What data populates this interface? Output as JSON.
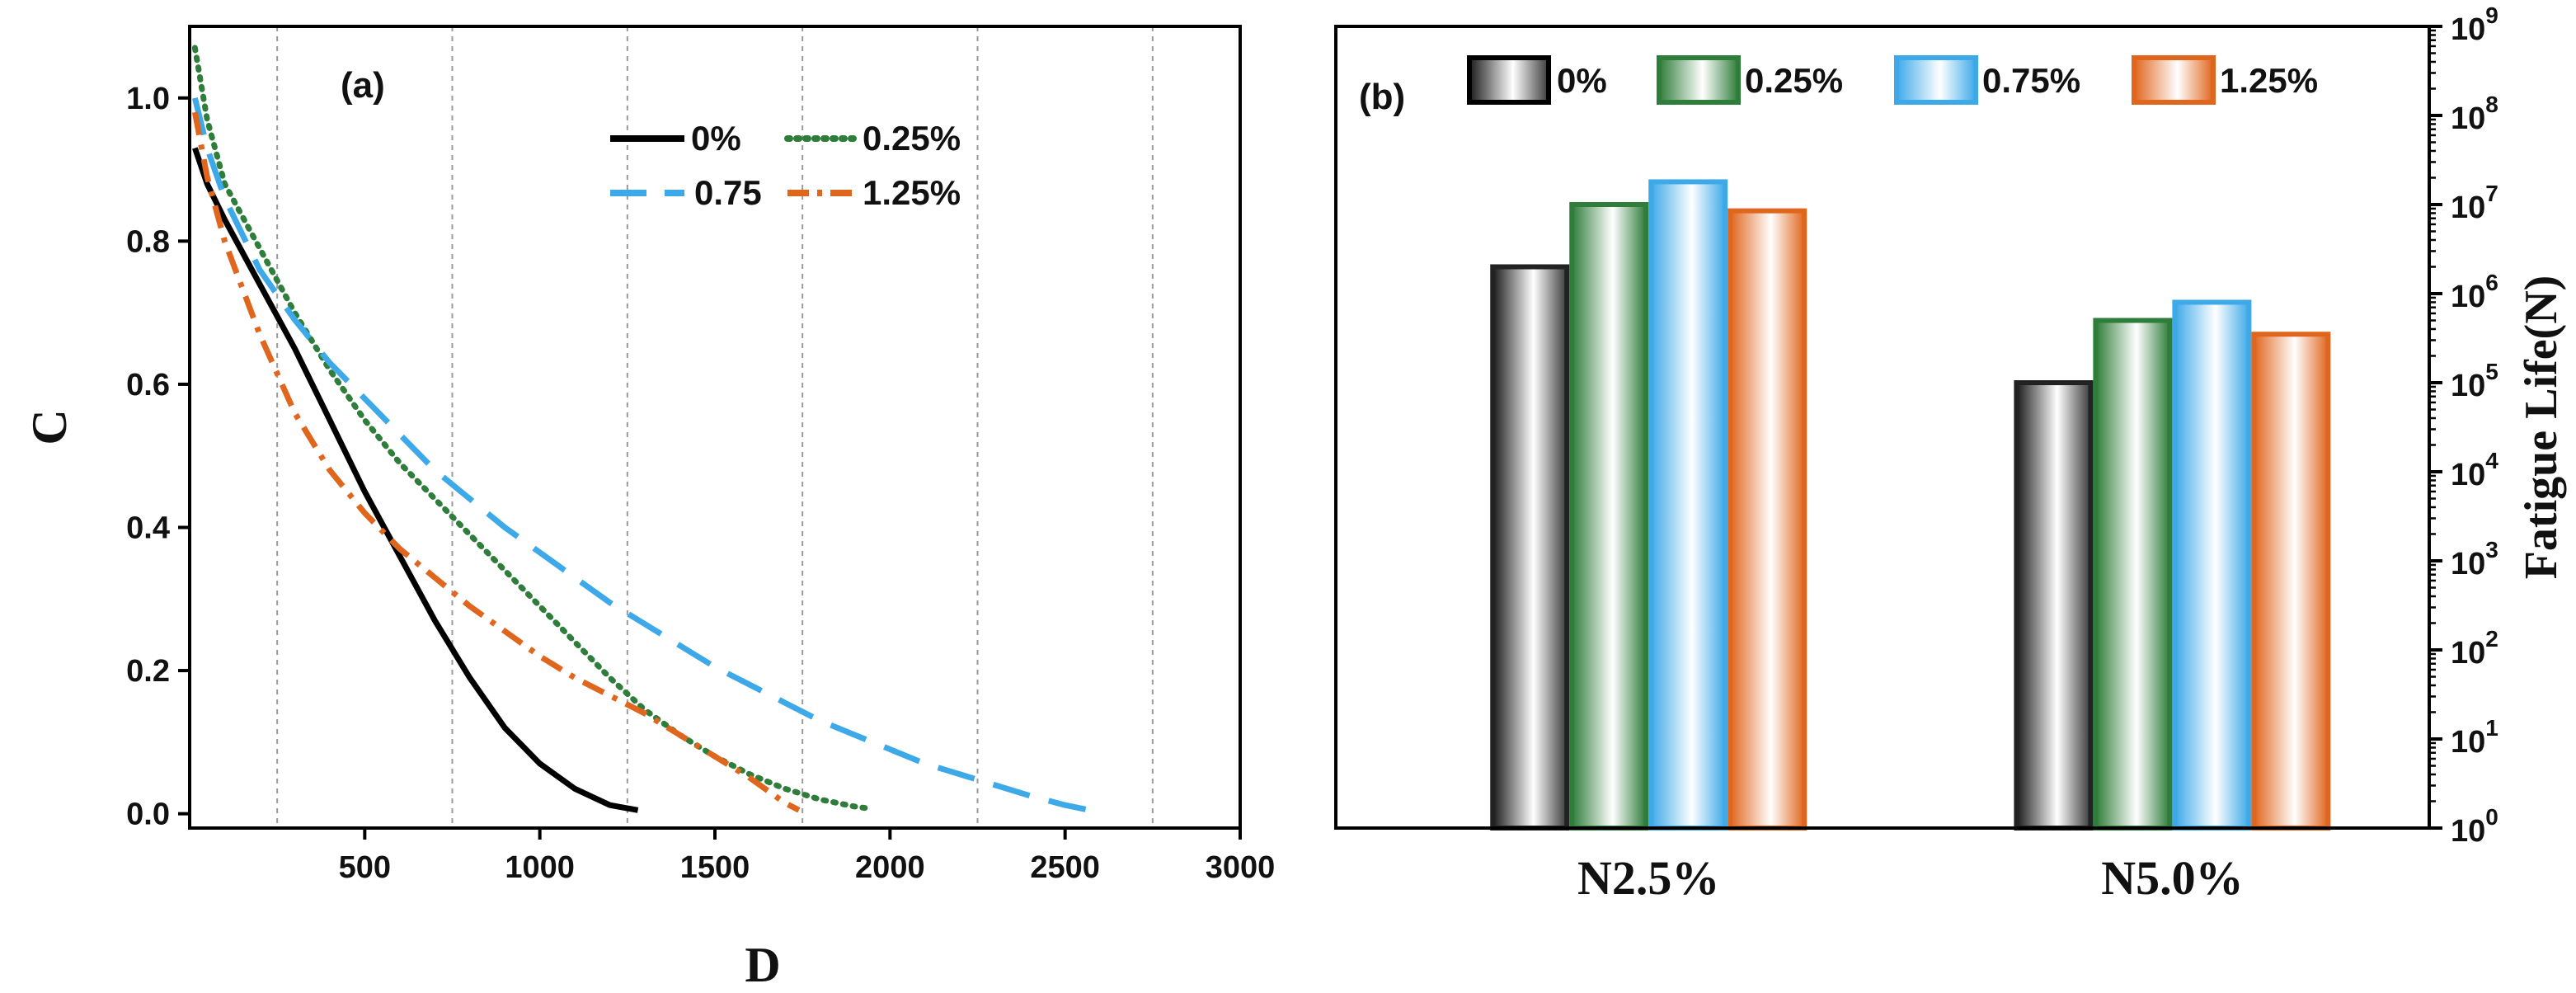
{
  "chart_data": [
    {
      "panel": "(a)",
      "type": "line",
      "xlabel": "D",
      "ylabel": "C",
      "xlim": [
        0,
        3000
      ],
      "ylim": [
        -0.02,
        1.1
      ],
      "x_ticks": [
        500,
        1000,
        1500,
        2000,
        2500,
        3000
      ],
      "x_tick_labels": [
        "500",
        "1000",
        "1500",
        "2000",
        "2500",
        "3000"
      ],
      "y_ticks": [
        0.0,
        0.2,
        0.4,
        0.6,
        0.8,
        1.0
      ],
      "y_tick_labels": [
        "0.0",
        "0.2",
        "0.4",
        "0.6",
        "0.8",
        "1.0"
      ],
      "vertical_gridlines": [
        250,
        750,
        1250,
        1750,
        2250,
        2750
      ],
      "legend_position": "top-right",
      "series": [
        {
          "name": "0%",
          "color": "#000000",
          "style": "solid",
          "points": [
            [
              15,
              0.93
            ],
            [
              50,
              0.88
            ],
            [
              100,
              0.83
            ],
            [
              200,
              0.74
            ],
            [
              300,
              0.65
            ],
            [
              400,
              0.55
            ],
            [
              500,
              0.45
            ],
            [
              600,
              0.36
            ],
            [
              700,
              0.27
            ],
            [
              800,
              0.19
            ],
            [
              900,
              0.12
            ],
            [
              1000,
              0.07
            ],
            [
              1100,
              0.035
            ],
            [
              1200,
              0.012
            ],
            [
              1280,
              0.005
            ]
          ]
        },
        {
          "name": "0.25%",
          "color": "#2E7D3A",
          "style": "dotted",
          "points": [
            [
              15,
              1.07
            ],
            [
              50,
              0.97
            ],
            [
              100,
              0.88
            ],
            [
              200,
              0.79
            ],
            [
              300,
              0.7
            ],
            [
              400,
              0.62
            ],
            [
              500,
              0.55
            ],
            [
              600,
              0.49
            ],
            [
              700,
              0.44
            ],
            [
              800,
              0.39
            ],
            [
              900,
              0.34
            ],
            [
              1000,
              0.29
            ],
            [
              1100,
              0.24
            ],
            [
              1200,
              0.19
            ],
            [
              1300,
              0.145
            ],
            [
              1400,
              0.11
            ],
            [
              1500,
              0.08
            ],
            [
              1600,
              0.055
            ],
            [
              1700,
              0.035
            ],
            [
              1800,
              0.02
            ],
            [
              1900,
              0.01
            ],
            [
              1930,
              0.008
            ]
          ]
        },
        {
          "name": "0.75",
          "color": "#3DA9E8",
          "style": "dashed",
          "points": [
            [
              15,
              1.0
            ],
            [
              50,
              0.93
            ],
            [
              100,
              0.86
            ],
            [
              200,
              0.76
            ],
            [
              300,
              0.69
            ],
            [
              400,
              0.63
            ],
            [
              500,
              0.58
            ],
            [
              600,
              0.53
            ],
            [
              700,
              0.48
            ],
            [
              800,
              0.44
            ],
            [
              900,
              0.4
            ],
            [
              1000,
              0.365
            ],
            [
              1100,
              0.33
            ],
            [
              1200,
              0.295
            ],
            [
              1300,
              0.265
            ],
            [
              1400,
              0.235
            ],
            [
              1500,
              0.205
            ],
            [
              1600,
              0.18
            ],
            [
              1700,
              0.155
            ],
            [
              1800,
              0.13
            ],
            [
              1900,
              0.11
            ],
            [
              2000,
              0.09
            ],
            [
              2100,
              0.07
            ],
            [
              2200,
              0.055
            ],
            [
              2300,
              0.04
            ],
            [
              2400,
              0.025
            ],
            [
              2500,
              0.012
            ],
            [
              2560,
              0.006
            ]
          ]
        },
        {
          "name": "1.25%",
          "color": "#E0661E",
          "style": "dashdot",
          "points": [
            [
              15,
              0.98
            ],
            [
              50,
              0.89
            ],
            [
              100,
              0.8
            ],
            [
              200,
              0.67
            ],
            [
              300,
              0.56
            ],
            [
              400,
              0.48
            ],
            [
              500,
              0.42
            ],
            [
              600,
              0.37
            ],
            [
              700,
              0.33
            ],
            [
              800,
              0.29
            ],
            [
              900,
              0.255
            ],
            [
              1000,
              0.22
            ],
            [
              1100,
              0.19
            ],
            [
              1200,
              0.165
            ],
            [
              1300,
              0.14
            ],
            [
              1400,
              0.11
            ],
            [
              1500,
              0.08
            ],
            [
              1600,
              0.05
            ],
            [
              1700,
              0.015
            ],
            [
              1740,
              0.005
            ]
          ]
        }
      ]
    },
    {
      "panel": "(b)",
      "type": "bar",
      "ylabel": "Fatigue Life(N)",
      "yscale": "log",
      "ylim": [
        1,
        1000000000
      ],
      "y_tick_exponents": [
        "0",
        "1",
        "2",
        "3",
        "4",
        "5",
        "6",
        "7",
        "8",
        "9"
      ],
      "y_tick_base": "10",
      "y_axis_side": "right",
      "legend_position": "top",
      "categories": [
        "N2.5%",
        "N5.0%"
      ],
      "series": [
        {
          "name": "0%",
          "color": "#222222",
          "values": [
            2000000,
            100000
          ]
        },
        {
          "name": "0.25%",
          "color": "#2E7D3A",
          "values": [
            10000000,
            500000
          ]
        },
        {
          "name": "0.75%",
          "color": "#3DA9E8",
          "values": [
            18000000,
            800000
          ]
        },
        {
          "name": "1.25%",
          "color": "#E0661E",
          "values": [
            8500000,
            350000
          ]
        }
      ]
    }
  ]
}
